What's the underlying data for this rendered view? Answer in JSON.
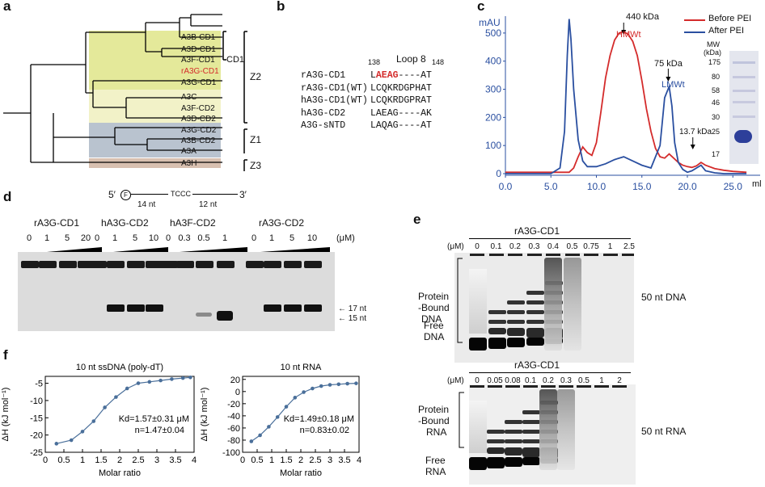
{
  "colors": {
    "red": "#d42b2b",
    "blue": "#2a4fa0",
    "yellow": "#e4e99a",
    "lightyellow": "#f2f2c8",
    "grayblue": "#b9c3cf",
    "tan": "#d8c0b0"
  },
  "panel_a": {
    "label": "a",
    "leaves": [
      "A3B-CD1",
      "A3D-CD1",
      "A3F-CD1",
      "rA3G-CD1",
      "A3G-CD1",
      "A3C",
      "A3F-CD2",
      "A3D-CD2",
      "A3G-CD2",
      "A3B-CD2",
      "A3A",
      "A3H"
    ],
    "groups": {
      "cd1": "CD1",
      "z2": "Z2",
      "z1": "Z1",
      "z3": "Z3"
    }
  },
  "panel_b": {
    "label": "b",
    "title": "Loop 8",
    "start": "138",
    "end": "148",
    "rows": [
      {
        "name": "rA3G-CD1",
        "seq_a": "L",
        "seq_red": "AEAG",
        "seq_b": "----AT"
      },
      {
        "name": "rA3G-CD1(WT)",
        "seq_a": "LCQKRDGPHAT",
        "seq_red": "",
        "seq_b": ""
      },
      {
        "name": "hA3G-CD1(WT)",
        "seq_a": "LCQKRDGPRAT",
        "seq_red": "",
        "seq_b": ""
      },
      {
        "name": "hA3G-CD2",
        "seq_a": "LAEAG----AK",
        "seq_red": "",
        "seq_b": ""
      },
      {
        "name": "A3G-sNTD",
        "seq_a": "LAQAG----AT",
        "seq_red": "",
        "seq_b": ""
      }
    ]
  },
  "panel_c": {
    "label": "c",
    "ylabel": "mAU",
    "xunit": "ml",
    "legend": [
      "Before PEI",
      "After PEI"
    ],
    "markers": [
      "440 kDa",
      "75 kDa",
      "13.7 kDa"
    ],
    "peaks": [
      "HMWt",
      "LMWt"
    ],
    "mw_title": "MW",
    "mw_unit": "(kDa)",
    "mw_values": [
      "175",
      "80",
      "58",
      "46",
      "30",
      "25",
      "17"
    ]
  },
  "chart_data": {
    "type": "line",
    "title": "",
    "xlabel": "ml",
    "ylabel": "mAU",
    "xlim": [
      0,
      28
    ],
    "ylim": [
      0,
      560
    ],
    "xticks": [
      "0.0",
      "5.0",
      "10.0",
      "15.0",
      "20.0",
      "25.0"
    ],
    "yticks": [
      "0",
      "100",
      "200",
      "300",
      "400",
      "500"
    ],
    "series": [
      {
        "name": "Before PEI",
        "color": "#d42b2b",
        "x": [
          0,
          5,
          7,
          7.5,
          8,
          8.5,
          9,
          9.5,
          10,
          10.5,
          11,
          11.5,
          12,
          12.5,
          13,
          13.5,
          14,
          14.5,
          15,
          15.5,
          16,
          16.5,
          17,
          17.5,
          18,
          18.5,
          19,
          19.5,
          20,
          20.5,
          21,
          21.5,
          22,
          23,
          24,
          25,
          26.5
        ],
        "y": [
          5,
          5,
          5,
          20,
          60,
          95,
          75,
          65,
          110,
          220,
          340,
          420,
          475,
          500,
          505,
          495,
          470,
          420,
          330,
          230,
          150,
          90,
          60,
          55,
          70,
          55,
          40,
          30,
          25,
          22,
          28,
          40,
          30,
          18,
          12,
          8,
          5
        ]
      },
      {
        "name": "After PEI",
        "color": "#2a4fa0",
        "x": [
          0,
          5,
          6,
          6.5,
          6.8,
          7,
          7.2,
          7.5,
          8,
          8.5,
          9,
          10,
          11,
          12,
          13,
          14,
          15,
          16,
          17,
          17.5,
          18,
          18.3,
          18.6,
          19,
          19.5,
          20,
          20.5,
          21,
          21.5,
          22,
          23,
          24,
          25,
          26.5
        ],
        "y": [
          0,
          0,
          20,
          150,
          420,
          550,
          480,
          300,
          120,
          45,
          25,
          25,
          35,
          50,
          60,
          45,
          30,
          20,
          100,
          270,
          310,
          240,
          110,
          40,
          15,
          5,
          10,
          20,
          30,
          10,
          3,
          0,
          0,
          0
        ]
      }
    ]
  },
  "panel_d": {
    "label": "d",
    "substrate": {
      "five": "5′",
      "f": "F",
      "len1": "14 nt",
      "motif": "TCCC",
      "len2": "12 nt",
      "three": "3′"
    },
    "groups": [
      {
        "name": "rA3G-CD1",
        "concs": [
          "0",
          "1",
          "5",
          "20"
        ]
      },
      {
        "name": "hA3G-CD2",
        "concs": [
          "0",
          "1",
          "5",
          "10"
        ]
      },
      {
        "name": "hA3F-CD2",
        "concs": [
          "0",
          "0.3",
          "0.5",
          "1"
        ]
      },
      {
        "name": "rA3G-CD2",
        "concs": [
          "0",
          "1",
          "5",
          "10"
        ]
      }
    ],
    "unit": "(μM)",
    "bands": [
      "← 17 nt",
      "← 15 nt"
    ]
  },
  "panel_e": {
    "label": "e",
    "dna": {
      "title": "rA3G-CD1",
      "unit": "(μM)",
      "concs": [
        "0",
        "0.1",
        "0.2",
        "0.3",
        "0.4",
        "0.5",
        "0.75",
        "1",
        "2.5"
      ],
      "bound": [
        "Protein",
        "-Bound",
        "DNA"
      ],
      "free": [
        "Free",
        "DNA"
      ],
      "name": "50 nt DNA"
    },
    "rna": {
      "title": "rA3G-CD1",
      "unit": "(μM)",
      "concs": [
        "0",
        "0.05",
        "0.08",
        "0.1",
        "0.2",
        "0.3",
        "0.5",
        "1",
        "2"
      ],
      "bound": [
        "Protein",
        "-Bound",
        "RNA"
      ],
      "free": [
        "Free",
        "RNA"
      ],
      "name": "50 nt RNA"
    }
  },
  "panel_f": {
    "label": "f",
    "left": {
      "title": "10 nt ssDNA (poly-dT)",
      "ylabel": "ΔH (kJ mol⁻¹)",
      "xlabel": "Molar ratio",
      "kd": "Kd=1.57±0.31 μM",
      "n": "n=1.47±0.04",
      "yticks": [
        "-5",
        "-10",
        "-15",
        "-20",
        "-25"
      ],
      "xticks": [
        "0",
        "0.5",
        "1",
        "1.5",
        "2",
        "2.5",
        "3",
        "3.5",
        "4"
      ],
      "x": [
        0.3,
        0.7,
        1.0,
        1.3,
        1.6,
        1.9,
        2.2,
        2.5,
        2.8,
        3.1,
        3.4,
        3.7,
        3.9
      ],
      "y": [
        -22.5,
        -21.5,
        -19,
        -16,
        -12,
        -9,
        -6.5,
        -5,
        -4.6,
        -4.2,
        -3.8,
        -3.5,
        -3.3
      ]
    },
    "right": {
      "title": "10 nt RNA",
      "ylabel": "ΔH (kJ mol⁻¹)",
      "xlabel": "Molar ratio",
      "kd": "Kd=1.49±0.18 μM",
      "n": "n=0.83±0.02",
      "yticks": [
        "20",
        "0",
        "-20",
        "-40",
        "-60",
        "-80",
        "-100"
      ],
      "xticks": [
        "0",
        "0.5",
        "1",
        "1.5",
        "2",
        "2.5",
        "3",
        "3.5",
        "4"
      ],
      "x": [
        0.3,
        0.6,
        0.9,
        1.2,
        1.5,
        1.8,
        2.1,
        2.4,
        2.7,
        3.0,
        3.3,
        3.6,
        3.9
      ],
      "y": [
        -82,
        -72,
        -58,
        -42,
        -25,
        -10,
        -1,
        5,
        9,
        11,
        12,
        13,
        13.5
      ]
    }
  }
}
